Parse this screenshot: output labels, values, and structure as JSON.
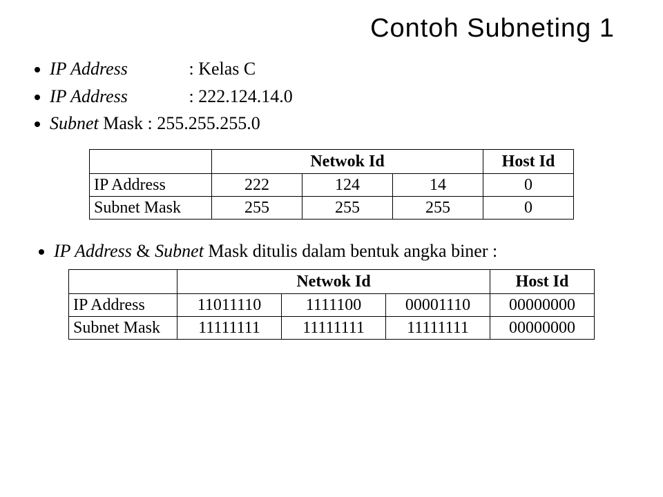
{
  "title": "Contoh Subneting 1",
  "bullets": {
    "b1_label": "IP Address",
    "b1_value": ":  Kelas C",
    "b2_label": "IP Address",
    "b2_value": ":  222.124.14.0",
    "b3_label_i": "Subnet",
    "b3_label_n": " Mask",
    "b3_value": ":  255.255.255.0"
  },
  "table1": {
    "header_net": "Netwok Id",
    "header_host": "Host Id",
    "rows": [
      {
        "label": "IP Address",
        "c1": "222",
        "c2": "124",
        "c3": "14",
        "c4": "0"
      },
      {
        "label": "Subnet Mask",
        "c1": "255",
        "c2": "255",
        "c3": "255",
        "c4": "0"
      }
    ]
  },
  "mid": {
    "t1": "IP Address",
    "t2": " & ",
    "t3": "Subnet",
    "t4": " Mask ditulis dalam bentuk angka biner :"
  },
  "table2": {
    "header_net": "Netwok Id",
    "header_host": "Host Id",
    "rows": [
      {
        "label": "IP Address",
        "c1": "11011110",
        "c2": "1111100",
        "c3": "00001110",
        "c4": "00000000"
      },
      {
        "label": "Subnet Mask",
        "c1": "11111111",
        "c2": "11111111",
        "c3": "11111111",
        "c4": "00000000"
      }
    ]
  },
  "colors": {
    "background": "#ffffff",
    "text": "#000000",
    "table_border": "#000000"
  }
}
